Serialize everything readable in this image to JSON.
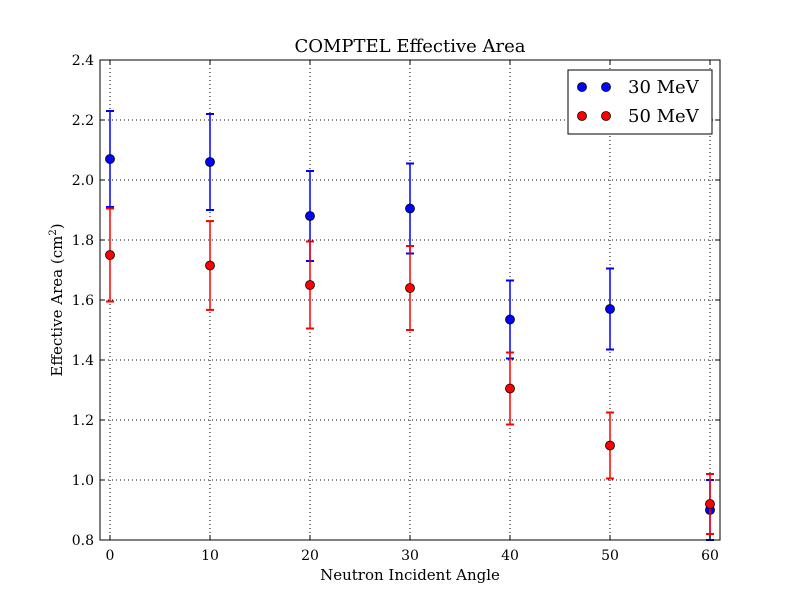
{
  "chart_data": {
    "type": "scatter",
    "title": "COMPTEL Effective Area",
    "xlabel": "Neutron Incident Angle",
    "ylabel_main": "Effective Area (cm",
    "ylabel_sup": "2",
    "ylabel_close": ")",
    "xlim": [
      -1,
      61
    ],
    "ylim": [
      0.8,
      2.4
    ],
    "xticks": [
      0,
      10,
      20,
      30,
      40,
      50,
      60
    ],
    "yticks": [
      0.8,
      1.0,
      1.2,
      1.4,
      1.6,
      1.8,
      2.0,
      2.2,
      2.4
    ],
    "xtick_labels": [
      "0",
      "10",
      "20",
      "30",
      "40",
      "50",
      "60"
    ],
    "ytick_labels": [
      "0.8",
      "1.0",
      "1.2",
      "1.4",
      "1.6",
      "1.8",
      "2.0",
      "2.2",
      "2.4"
    ],
    "grid": true,
    "legend_position": "top-right",
    "series": [
      {
        "name": "30 MeV",
        "color": "#0000ff",
        "x": [
          0,
          10,
          20,
          30,
          40,
          50,
          60
        ],
        "y": [
          2.07,
          2.06,
          1.88,
          1.905,
          1.535,
          1.57,
          0.9
        ],
        "err": [
          0.16,
          0.16,
          0.15,
          0.15,
          0.13,
          0.135,
          0.1
        ]
      },
      {
        "name": "50 MeV",
        "color": "#ff0000",
        "x": [
          0,
          10,
          20,
          30,
          40,
          50,
          60
        ],
        "y": [
          1.75,
          1.715,
          1.65,
          1.64,
          1.305,
          1.115,
          0.92
        ],
        "err": [
          0.155,
          0.148,
          0.145,
          0.14,
          0.12,
          0.11,
          0.1
        ]
      }
    ]
  }
}
